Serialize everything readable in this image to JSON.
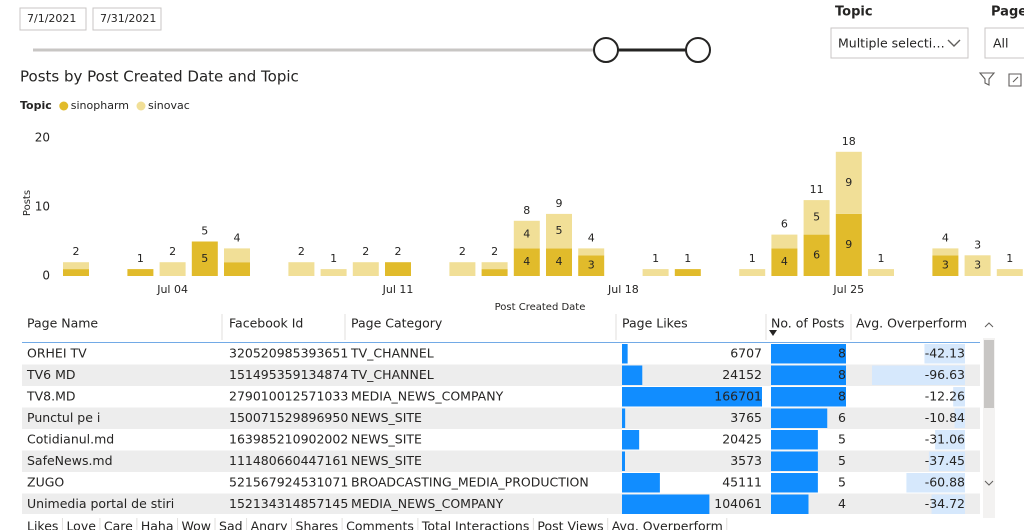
{
  "filters": {
    "date_start": "7/1/2021",
    "date_end": "7/31/2021",
    "topic_label": "Topic",
    "topic_value": "Multiple selecti…",
    "page_label": "Page",
    "page_value": "All"
  },
  "chart_data": {
    "type": "bar",
    "stacked": true,
    "title": "Posts by Post Created Date and Topic",
    "legend_title": "Topic",
    "xlabel": "Post Created Date",
    "ylabel": "Posts",
    "categories": [
      null,
      null,
      null,
      "Jul 04",
      null,
      null,
      null,
      null,
      null,
      null,
      "Jul 11",
      null,
      null,
      null,
      null,
      null,
      null,
      "Jul 18",
      null,
      null,
      null,
      null,
      null,
      null,
      "Jul 25",
      null,
      null,
      null,
      null,
      null
    ],
    "series": [
      {
        "name": "sinopharm",
        "color": "#e1bb2b",
        "values": [
          1,
          null,
          1,
          null,
          5,
          2,
          null,
          null,
          null,
          null,
          2,
          null,
          null,
          1,
          4,
          4,
          3,
          null,
          null,
          1,
          null,
          null,
          4,
          6,
          9,
          null,
          null,
          3,
          null,
          null
        ]
      },
      {
        "name": "sinovac",
        "color": "#f1df97",
        "values": [
          1,
          null,
          null,
          2,
          null,
          2,
          null,
          2,
          1,
          2,
          null,
          null,
          2,
          1,
          4,
          5,
          1,
          null,
          1,
          null,
          null,
          1,
          2,
          5,
          9,
          1,
          null,
          1,
          3,
          1
        ]
      }
    ],
    "totals": [
      2,
      null,
      1,
      2,
      5,
      4,
      null,
      2,
      1,
      2,
      2,
      null,
      2,
      2,
      8,
      9,
      4,
      null,
      1,
      1,
      null,
      1,
      6,
      11,
      18,
      1,
      null,
      4,
      3,
      1
    ],
    "ylim": [
      0,
      20
    ],
    "yticks": [
      0,
      10,
      20
    ],
    "grid": false
  },
  "table": {
    "columns": [
      "Page Name",
      "Facebook Id",
      "Page Category",
      "Page Likes",
      "No. of Posts",
      "Avg. Overperform"
    ],
    "rows": [
      [
        "ORHEI TV",
        "320520985393651",
        "TV_CHANNEL",
        6707,
        8,
        -42.13
      ],
      [
        "TV6 MD",
        "151495359134874",
        "TV_CHANNEL",
        24152,
        8,
        -96.63
      ],
      [
        "TV8.MD",
        "279010012571033",
        "MEDIA_NEWS_COMPANY",
        166701,
        8,
        -12.26
      ],
      [
        "Punctul pe i",
        "150071529896950",
        "NEWS_SITE",
        3765,
        6,
        -10.84
      ],
      [
        "Cotidianul.md",
        "163985210902002",
        "NEWS_SITE",
        20425,
        5,
        -31.06
      ],
      [
        "SafeNews.md",
        "111480660447161",
        "NEWS_SITE",
        3573,
        5,
        -37.45
      ],
      [
        "ZUGO",
        "521567924531071",
        "BROADCASTING_MEDIA_PRODUCTION",
        45111,
        5,
        -60.88
      ],
      [
        "Unimedia portal de stiri",
        "152134314857145",
        "MEDIA_NEWS_COMPANY",
        104061,
        4,
        -34.72
      ]
    ]
  },
  "second_table": {
    "columns": [
      "Likes",
      "Love",
      "Care",
      "Haha",
      "Wow",
      "Sad",
      "Angry",
      "Shares",
      "Comments",
      "Total Interactions",
      "Post Views",
      "Avg. Overperform"
    ]
  }
}
